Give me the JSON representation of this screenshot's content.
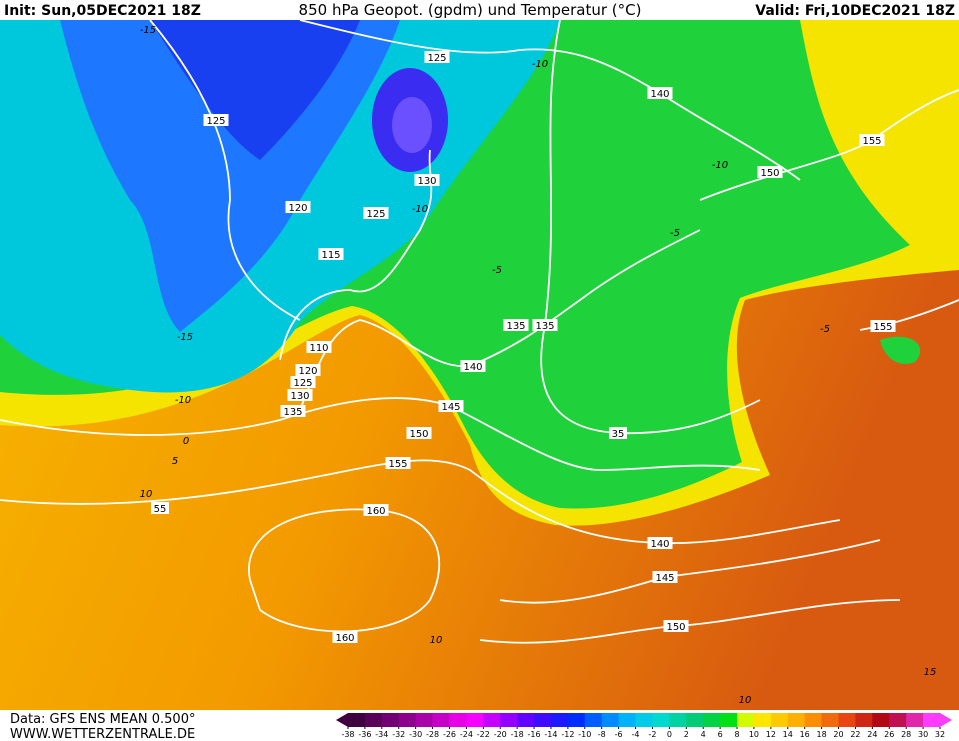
{
  "header": {
    "init": "Init: Sun,05DEC2021 18Z",
    "title": "850 hPa Geopot. (gpdm) und Temperatur (°C)",
    "valid": "Valid: Fri,10DEC2021 18Z"
  },
  "map": {
    "geopotential_labels": [
      125,
      140,
      125,
      155,
      150,
      130,
      120,
      125,
      115,
      135,
      135,
      155,
      110,
      140,
      120,
      125,
      130,
      145,
      135,
      150,
      35,
      155,
      55,
      160,
      140,
      145,
      150,
      160
    ],
    "temperature_labels": [
      -15,
      -10,
      -10,
      -10,
      -5,
      -5,
      -15,
      -10,
      0,
      5,
      10,
      10,
      10,
      15,
      -5
    ]
  },
  "footer": {
    "source": "Data: GFS ENS MEAN 0.500°",
    "site": "WWW.WETTERZENTRALE.DE"
  },
  "colorbar": {
    "ticks": [
      -38,
      -36,
      -34,
      -32,
      -30,
      -28,
      -26,
      -24,
      -22,
      -20,
      -18,
      -16,
      -14,
      -12,
      -10,
      -8,
      -6,
      -4,
      -2,
      0,
      2,
      4,
      6,
      8,
      10,
      12,
      14,
      16,
      18,
      20,
      22,
      24,
      26,
      28,
      30,
      32
    ]
  }
}
